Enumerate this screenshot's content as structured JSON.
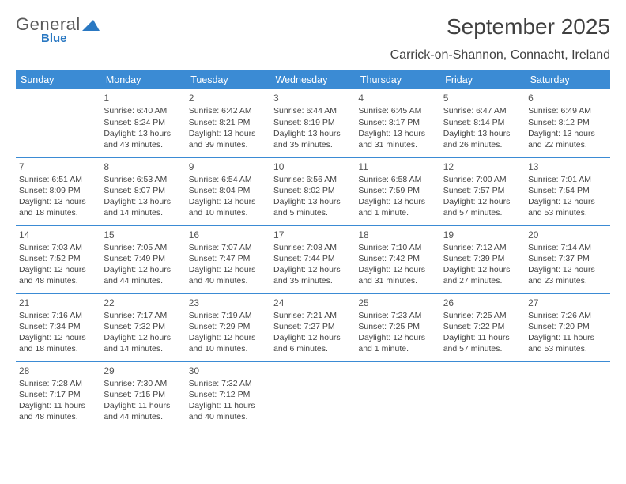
{
  "brand": {
    "word1": "General",
    "word2": "Blue"
  },
  "title": "September 2025",
  "location": "Carrick-on-Shannon, Connacht, Ireland",
  "colors": {
    "header_bg": "#3b8bd4",
    "header_text": "#ffffff",
    "rule": "#3b8bd4",
    "body_text": "#444444",
    "title_text": "#404040",
    "logo_gray": "#5a5a5a",
    "logo_blue": "#2a78c2",
    "background": "#ffffff"
  },
  "typography": {
    "title_fontsize": 28,
    "subtitle_fontsize": 16,
    "header_fontsize": 12.5,
    "cell_fontsize": 10.5,
    "daynum_fontsize": 12
  },
  "day_headers": [
    "Sunday",
    "Monday",
    "Tuesday",
    "Wednesday",
    "Thursday",
    "Friday",
    "Saturday"
  ],
  "weeks": [
    [
      null,
      {
        "n": "1",
        "sr": "Sunrise: 6:40 AM",
        "ss": "Sunset: 8:24 PM",
        "dl": "Daylight: 13 hours and 43 minutes."
      },
      {
        "n": "2",
        "sr": "Sunrise: 6:42 AM",
        "ss": "Sunset: 8:21 PM",
        "dl": "Daylight: 13 hours and 39 minutes."
      },
      {
        "n": "3",
        "sr": "Sunrise: 6:44 AM",
        "ss": "Sunset: 8:19 PM",
        "dl": "Daylight: 13 hours and 35 minutes."
      },
      {
        "n": "4",
        "sr": "Sunrise: 6:45 AM",
        "ss": "Sunset: 8:17 PM",
        "dl": "Daylight: 13 hours and 31 minutes."
      },
      {
        "n": "5",
        "sr": "Sunrise: 6:47 AM",
        "ss": "Sunset: 8:14 PM",
        "dl": "Daylight: 13 hours and 26 minutes."
      },
      {
        "n": "6",
        "sr": "Sunrise: 6:49 AM",
        "ss": "Sunset: 8:12 PM",
        "dl": "Daylight: 13 hours and 22 minutes."
      }
    ],
    [
      {
        "n": "7",
        "sr": "Sunrise: 6:51 AM",
        "ss": "Sunset: 8:09 PM",
        "dl": "Daylight: 13 hours and 18 minutes."
      },
      {
        "n": "8",
        "sr": "Sunrise: 6:53 AM",
        "ss": "Sunset: 8:07 PM",
        "dl": "Daylight: 13 hours and 14 minutes."
      },
      {
        "n": "9",
        "sr": "Sunrise: 6:54 AM",
        "ss": "Sunset: 8:04 PM",
        "dl": "Daylight: 13 hours and 10 minutes."
      },
      {
        "n": "10",
        "sr": "Sunrise: 6:56 AM",
        "ss": "Sunset: 8:02 PM",
        "dl": "Daylight: 13 hours and 5 minutes."
      },
      {
        "n": "11",
        "sr": "Sunrise: 6:58 AM",
        "ss": "Sunset: 7:59 PM",
        "dl": "Daylight: 13 hours and 1 minute."
      },
      {
        "n": "12",
        "sr": "Sunrise: 7:00 AM",
        "ss": "Sunset: 7:57 PM",
        "dl": "Daylight: 12 hours and 57 minutes."
      },
      {
        "n": "13",
        "sr": "Sunrise: 7:01 AM",
        "ss": "Sunset: 7:54 PM",
        "dl": "Daylight: 12 hours and 53 minutes."
      }
    ],
    [
      {
        "n": "14",
        "sr": "Sunrise: 7:03 AM",
        "ss": "Sunset: 7:52 PM",
        "dl": "Daylight: 12 hours and 48 minutes."
      },
      {
        "n": "15",
        "sr": "Sunrise: 7:05 AM",
        "ss": "Sunset: 7:49 PM",
        "dl": "Daylight: 12 hours and 44 minutes."
      },
      {
        "n": "16",
        "sr": "Sunrise: 7:07 AM",
        "ss": "Sunset: 7:47 PM",
        "dl": "Daylight: 12 hours and 40 minutes."
      },
      {
        "n": "17",
        "sr": "Sunrise: 7:08 AM",
        "ss": "Sunset: 7:44 PM",
        "dl": "Daylight: 12 hours and 35 minutes."
      },
      {
        "n": "18",
        "sr": "Sunrise: 7:10 AM",
        "ss": "Sunset: 7:42 PM",
        "dl": "Daylight: 12 hours and 31 minutes."
      },
      {
        "n": "19",
        "sr": "Sunrise: 7:12 AM",
        "ss": "Sunset: 7:39 PM",
        "dl": "Daylight: 12 hours and 27 minutes."
      },
      {
        "n": "20",
        "sr": "Sunrise: 7:14 AM",
        "ss": "Sunset: 7:37 PM",
        "dl": "Daylight: 12 hours and 23 minutes."
      }
    ],
    [
      {
        "n": "21",
        "sr": "Sunrise: 7:16 AM",
        "ss": "Sunset: 7:34 PM",
        "dl": "Daylight: 12 hours and 18 minutes."
      },
      {
        "n": "22",
        "sr": "Sunrise: 7:17 AM",
        "ss": "Sunset: 7:32 PM",
        "dl": "Daylight: 12 hours and 14 minutes."
      },
      {
        "n": "23",
        "sr": "Sunrise: 7:19 AM",
        "ss": "Sunset: 7:29 PM",
        "dl": "Daylight: 12 hours and 10 minutes."
      },
      {
        "n": "24",
        "sr": "Sunrise: 7:21 AM",
        "ss": "Sunset: 7:27 PM",
        "dl": "Daylight: 12 hours and 6 minutes."
      },
      {
        "n": "25",
        "sr": "Sunrise: 7:23 AM",
        "ss": "Sunset: 7:25 PM",
        "dl": "Daylight: 12 hours and 1 minute."
      },
      {
        "n": "26",
        "sr": "Sunrise: 7:25 AM",
        "ss": "Sunset: 7:22 PM",
        "dl": "Daylight: 11 hours and 57 minutes."
      },
      {
        "n": "27",
        "sr": "Sunrise: 7:26 AM",
        "ss": "Sunset: 7:20 PM",
        "dl": "Daylight: 11 hours and 53 minutes."
      }
    ],
    [
      {
        "n": "28",
        "sr": "Sunrise: 7:28 AM",
        "ss": "Sunset: 7:17 PM",
        "dl": "Daylight: 11 hours and 48 minutes."
      },
      {
        "n": "29",
        "sr": "Sunrise: 7:30 AM",
        "ss": "Sunset: 7:15 PM",
        "dl": "Daylight: 11 hours and 44 minutes."
      },
      {
        "n": "30",
        "sr": "Sunrise: 7:32 AM",
        "ss": "Sunset: 7:12 PM",
        "dl": "Daylight: 11 hours and 40 minutes."
      },
      null,
      null,
      null,
      null
    ]
  ]
}
